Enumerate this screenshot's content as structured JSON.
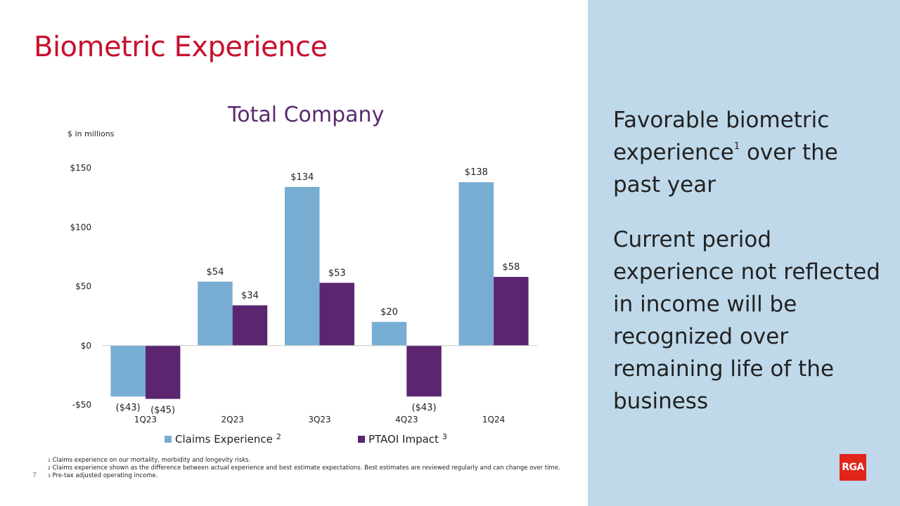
{
  "slide": {
    "title": "Biometric Experience",
    "page_number": "7"
  },
  "panel": {
    "paragraph1_a": "Favorable biometric experience",
    "paragraph1_sup": "1",
    "paragraph1_b": " over the past year",
    "paragraph2": "Current period experience not reflected in income will be recognized over remaining life of the business"
  },
  "footnotes": [
    {
      "num": "1",
      "text": " Claims experience on our mortality, morbidity and longevity risks."
    },
    {
      "num": "2",
      "text": " Claims experience shown as the difference between actual experience and best estimate expectations. Best estimates are reviewed regularly and can change over time."
    },
    {
      "num": "3",
      "text": " Pre-tax adjusted operating income."
    }
  ],
  "logo": {
    "text": "RGA"
  },
  "colors": {
    "claims": "#78add3",
    "ptaoi": "#5b2570",
    "title": "#c8102e"
  },
  "chart_data": {
    "type": "bar",
    "title": "Total Company",
    "units_label": "$ in millions",
    "categories": [
      "1Q23",
      "2Q23",
      "3Q23",
      "4Q23",
      "1Q24"
    ],
    "series": [
      {
        "name": "Claims Experience",
        "legend_sup": "2",
        "values": [
          -43,
          54,
          134,
          20,
          138
        ],
        "labels": [
          "($43)",
          "$54",
          "$134",
          "$20",
          "$138"
        ]
      },
      {
        "name": "PTAOI Impact",
        "legend_sup": "3",
        "values": [
          -45,
          34,
          53,
          -43,
          58
        ],
        "labels": [
          "($45)",
          "$34",
          "$53",
          "($43)",
          "$58"
        ]
      }
    ],
    "y_ticks": [
      150,
      100,
      50,
      0,
      -50
    ],
    "y_tick_labels": [
      "$150",
      "$100",
      "$50",
      "$0",
      "-$50"
    ],
    "ylim": [
      -50,
      150
    ],
    "legend_position": "bottom"
  }
}
